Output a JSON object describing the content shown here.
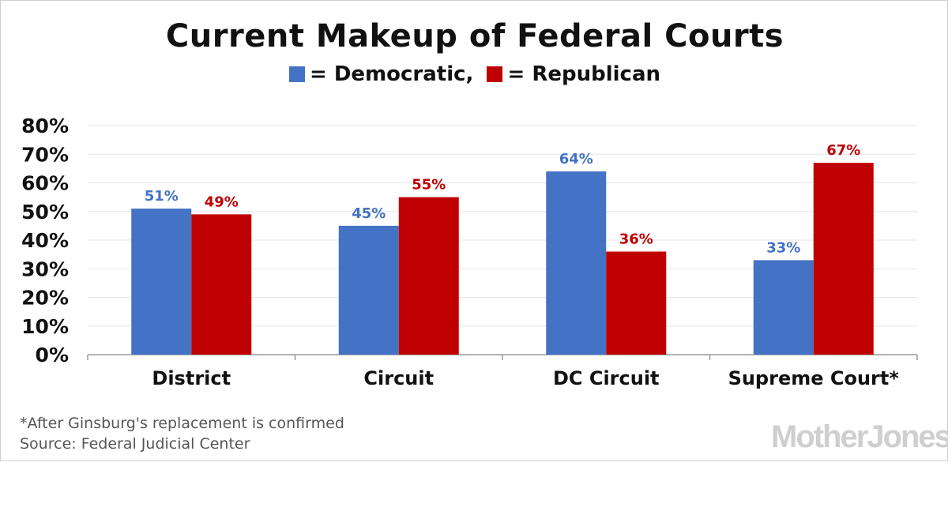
{
  "title": "Current Makeup of Federal Courts",
  "legend": [
    {
      "label": "= Democratic,",
      "color": "#4472c4"
    },
    {
      "label": "= Republican",
      "color": "#c00000"
    }
  ],
  "footnote": {
    "line1": "*After Ginsburg's replacement is confirmed",
    "line2": "Source: Federal Judicial Center"
  },
  "brand": "MotherJones",
  "chart_data": {
    "type": "bar",
    "categories": [
      "District",
      "Circuit",
      "DC Circuit",
      "Supreme Court*"
    ],
    "series": [
      {
        "name": "Democratic",
        "values": [
          51,
          45,
          64,
          33
        ],
        "color": "#4472c4",
        "labels": [
          "51%",
          "45%",
          "64%",
          "33%"
        ]
      },
      {
        "name": "Republican",
        "values": [
          49,
          55,
          36,
          67
        ],
        "color": "#c00000",
        "labels": [
          "49%",
          "55%",
          "36%",
          "67%"
        ]
      }
    ],
    "yticks": [
      "0%",
      "10%",
      "20%",
      "30%",
      "40%",
      "50%",
      "60%",
      "70%",
      "80%"
    ],
    "ylim": [
      0,
      80
    ],
    "grid": true,
    "legend_position": "top"
  }
}
